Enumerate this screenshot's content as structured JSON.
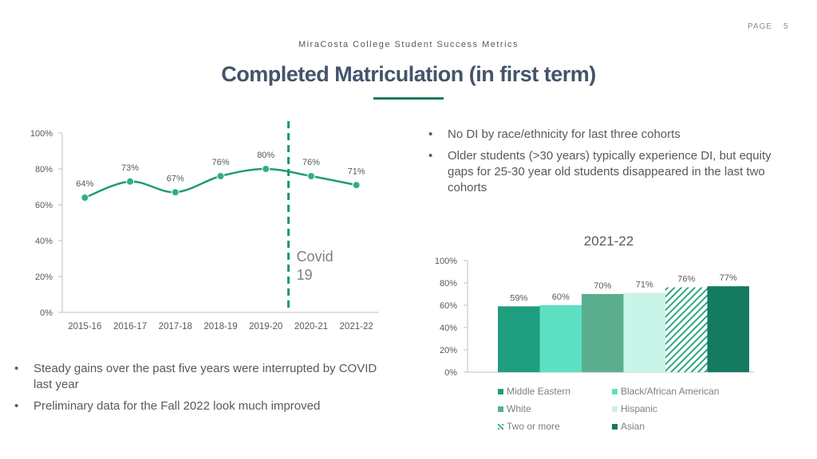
{
  "header": {
    "page_label": "PAGE",
    "page_number": "5",
    "subtitle": "MiraCosta College Student Success Metrics",
    "title": "Completed Matriculation (in first term)"
  },
  "right_bullets": [
    "No DI by race/ethnicity for last three cohorts",
    "Older students (>30 years) typically experience DI, but equity gaps for 25-30 year old students disappeared in the last two cohorts"
  ],
  "left_bullets": [
    "Steady gains over the past five years were interrupted by COVID last year",
    "Preliminary data for the Fall 2022 look much improved"
  ],
  "colors": {
    "title": "#44546a",
    "accent": "#1a7a5e",
    "line": "#1f9a7a",
    "marker": "#2fae8a"
  },
  "chart_data": [
    {
      "type": "line",
      "title": "",
      "categories": [
        "2015-16",
        "2016-17",
        "2017-18",
        "2018-19",
        "2019-20",
        "2020-21",
        "2021-22"
      ],
      "values": [
        64,
        73,
        67,
        76,
        80,
        76,
        71
      ],
      "data_labels": [
        "64%",
        "73%",
        "67%",
        "76%",
        "80%",
        "76%",
        "71%"
      ],
      "y_ticks": [
        "0%",
        "20%",
        "40%",
        "60%",
        "80%",
        "100%"
      ],
      "ylim": [
        0,
        100
      ],
      "annotation": {
        "text_line1": "Covid",
        "text_line2": "19",
        "between": [
          "2019-20",
          "2020-21"
        ]
      }
    },
    {
      "type": "bar",
      "title": "2021-22",
      "categories": [
        "Middle Eastern",
        "Black/African American",
        "White",
        "Hispanic",
        "Two or more",
        "Asian"
      ],
      "values": [
        59,
        60,
        70,
        71,
        76,
        77
      ],
      "data_labels": [
        "59%",
        "60%",
        "70%",
        "71%",
        "76%",
        "77%"
      ],
      "colors": [
        "#1e9e7e",
        "#5de0c2",
        "#5aae8e",
        "#c9f4e8",
        "#2aa782",
        "#147a60"
      ],
      "patterns": [
        "solid",
        "solid",
        "solid",
        "solid",
        "hatched",
        "solid"
      ],
      "y_ticks": [
        "0%",
        "20%",
        "40%",
        "60%",
        "80%",
        "100%"
      ],
      "ylim": [
        0,
        100
      ],
      "legend_position": "bottom"
    }
  ]
}
